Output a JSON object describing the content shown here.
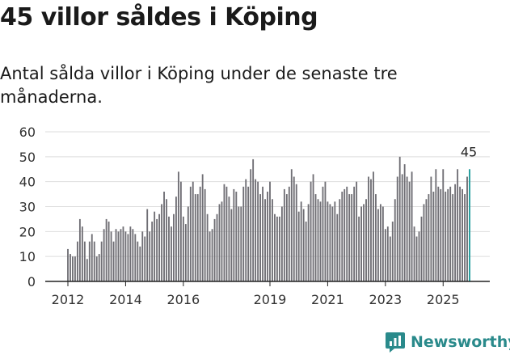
{
  "header": {
    "title": "45 villor såldes i Köping",
    "subtitle": "Antal sålda villor i Köping under de senaste tre månaderna."
  },
  "brand": {
    "name": "Newsworthy"
  },
  "colors": {
    "bar": "#6f6e74",
    "highlight": "#1a9a9a",
    "grid": "#dddddd",
    "axis": "#222222"
  },
  "chart_data": {
    "type": "bar",
    "title": "45 villor såldes i Köping",
    "subtitle": "Antal sålda villor i Köping under de senaste tre månaderna.",
    "xlabel": "",
    "ylabel": "",
    "ylim": [
      0,
      60
    ],
    "yticks": [
      0,
      10,
      20,
      30,
      40,
      50,
      60
    ],
    "grid": true,
    "start": "2012-01",
    "frequency": "monthly",
    "x_tick_labels": [
      {
        "label": "2012",
        "index": 0
      },
      {
        "label": "2014",
        "index": 24
      },
      {
        "label": "2016",
        "index": 48
      },
      {
        "label": "2019",
        "index": 84
      },
      {
        "label": "2021",
        "index": 108
      },
      {
        "label": "2023",
        "index": 132
      },
      {
        "label": "2025",
        "index": 156
      }
    ],
    "highlight_label": "45",
    "values": [
      13,
      11,
      10,
      10,
      16,
      25,
      22,
      16,
      9,
      16,
      19,
      16,
      10,
      11,
      16,
      21,
      25,
      24,
      20,
      16,
      21,
      20,
      21,
      22,
      20,
      19,
      22,
      21,
      19,
      16,
      14,
      20,
      18,
      29,
      20,
      24,
      28,
      25,
      27,
      31,
      36,
      33,
      26,
      22,
      27,
      34,
      44,
      40,
      26,
      23,
      30,
      38,
      40,
      35,
      35,
      38,
      43,
      37,
      27,
      20,
      21,
      25,
      27,
      31,
      32,
      39,
      38,
      34,
      29,
      37,
      36,
      30,
      30,
      38,
      41,
      38,
      45,
      49,
      41,
      40,
      35,
      38,
      33,
      36,
      40,
      33,
      27,
      26,
      26,
      30,
      37,
      35,
      38,
      45,
      42,
      39,
      28,
      32,
      29,
      24,
      31,
      40,
      43,
      35,
      33,
      32,
      38,
      40,
      32,
      31,
      30,
      32,
      27,
      33,
      36,
      37,
      38,
      35,
      35,
      38,
      40,
      26,
      30,
      31,
      33,
      42,
      41,
      44,
      35,
      29,
      31,
      30,
      21,
      22,
      18,
      24,
      33,
      42,
      50,
      43,
      47,
      42,
      40,
      44,
      22,
      18,
      20,
      26,
      31,
      33,
      35,
      42,
      36,
      45,
      38,
      37,
      45,
      36,
      37,
      38,
      35,
      39,
      45,
      38,
      37,
      35,
      42,
      45
    ]
  }
}
